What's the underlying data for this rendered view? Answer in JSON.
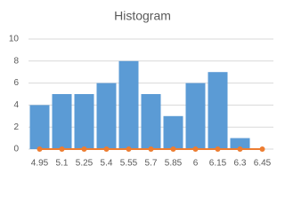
{
  "chart_data": {
    "type": "combo",
    "title": "Histogram",
    "categories": [
      "4.95",
      "5.1",
      "5.25",
      "5.4",
      "5.55",
      "5.7",
      "5.85",
      "6",
      "6.15",
      "6.3",
      "6.45"
    ],
    "series": [
      {
        "type": "bar",
        "color": "#5b9bd5",
        "values": [
          4,
          5,
          5,
          6,
          8,
          5,
          3,
          6,
          7,
          1,
          0
        ]
      },
      {
        "type": "line",
        "color": "#ed7d31",
        "values": [
          0,
          0,
          0,
          0,
          0,
          0,
          0,
          0,
          0,
          0,
          0
        ]
      }
    ],
    "ylim": [
      0,
      10
    ],
    "yticks": [
      0,
      2,
      4,
      6,
      8,
      10
    ],
    "grid": true
  }
}
